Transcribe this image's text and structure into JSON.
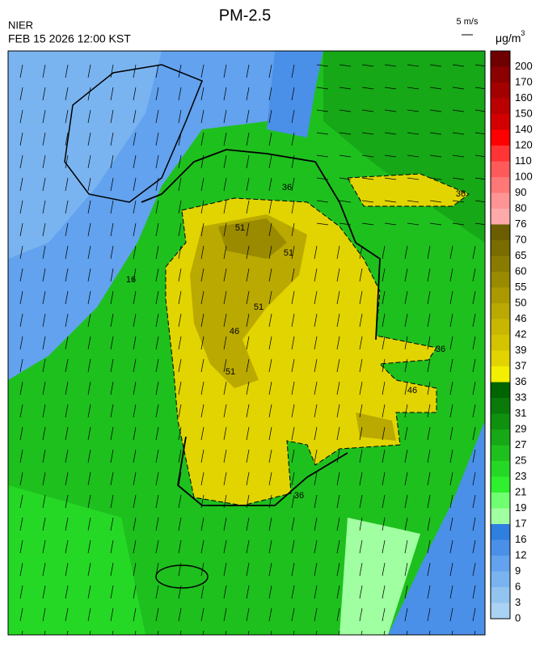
{
  "header": {
    "title": "PM-2.5",
    "agency": "NIER",
    "datetime": "FEB 15 2026 12:00 KST",
    "wind_scale": "5 m/s",
    "unit": "μg/m",
    "unit_sup": "3"
  },
  "colorbar": [
    {
      "label": "200",
      "color": "#6e0000"
    },
    {
      "label": "170",
      "color": "#8b0000"
    },
    {
      "label": "160",
      "color": "#a30000"
    },
    {
      "label": "150",
      "color": "#bb0000"
    },
    {
      "label": "140",
      "color": "#d40000"
    },
    {
      "label": "120",
      "color": "#ff0000"
    },
    {
      "label": "110",
      "color": "#ff3434"
    },
    {
      "label": "100",
      "color": "#ff5a5a"
    },
    {
      "label": "90",
      "color": "#ff7878"
    },
    {
      "label": "80",
      "color": "#ff9494"
    },
    {
      "label": "76",
      "color": "#ffaaaa"
    },
    {
      "label": "70",
      "color": "#6a5e00"
    },
    {
      "label": "65",
      "color": "#796c00"
    },
    {
      "label": "60",
      "color": "#897b00"
    },
    {
      "label": "55",
      "color": "#998a00"
    },
    {
      "label": "50",
      "color": "#aa9a00"
    },
    {
      "label": "46",
      "color": "#baa900"
    },
    {
      "label": "42",
      "color": "#c8b700"
    },
    {
      "label": "39",
      "color": "#d4c400"
    },
    {
      "label": "37",
      "color": "#e2d400"
    },
    {
      "label": "36",
      "color": "#f2f000"
    },
    {
      "label": "33",
      "color": "#006400"
    },
    {
      "label": "31",
      "color": "#0a7a0a"
    },
    {
      "label": "29",
      "color": "#0f900f"
    },
    {
      "label": "27",
      "color": "#16a816"
    },
    {
      "label": "25",
      "color": "#1ec01e"
    },
    {
      "label": "23",
      "color": "#26d826"
    },
    {
      "label": "21",
      "color": "#2ef02e"
    },
    {
      "label": "19",
      "color": "#70ff70"
    },
    {
      "label": "17",
      "color": "#a0ffa0"
    },
    {
      "label": "16",
      "color": "#2f7fe0"
    },
    {
      "label": "12",
      "color": "#4a90e8"
    },
    {
      "label": "9",
      "color": "#62a2ee"
    },
    {
      "label": "6",
      "color": "#7ab4f0"
    },
    {
      "label": "3",
      "color": "#92c4f0"
    },
    {
      "label": "0",
      "color": "#aad2f2"
    }
  ],
  "contour_labels": [
    "36",
    "51",
    "51",
    "51",
    "51",
    "46",
    "46",
    "36",
    "36",
    "16",
    "36"
  ]
}
